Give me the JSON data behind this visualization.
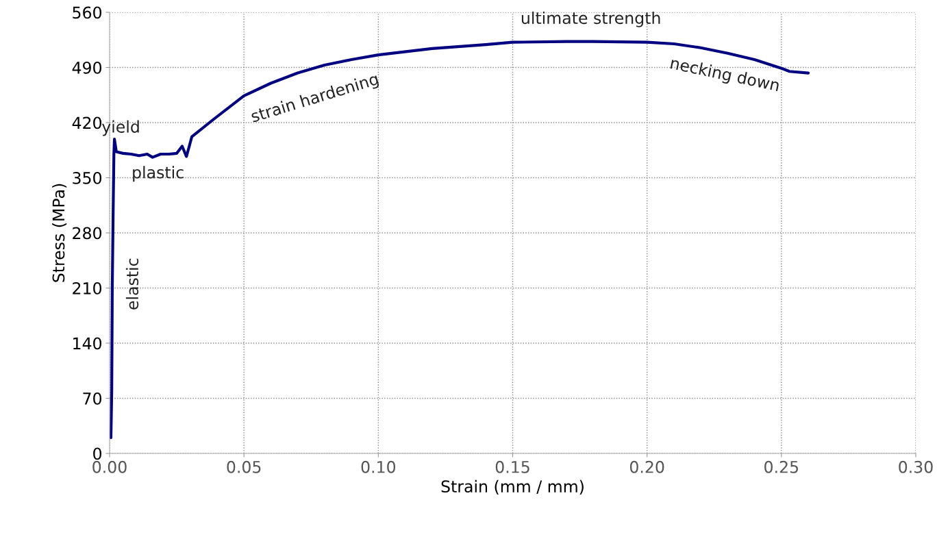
{
  "chart_data": {
    "type": "line",
    "xlabel": "Strain (mm / mm)",
    "ylabel": "Stress (MPa)",
    "xlim": [
      0,
      0.3
    ],
    "ylim": [
      0,
      560
    ],
    "xticks": [
      {
        "value": 0,
        "label": "0.00"
      },
      {
        "value": 0.05,
        "label": "0.05"
      },
      {
        "value": 0.1,
        "label": "0.10"
      },
      {
        "value": 0.15,
        "label": "0.15"
      },
      {
        "value": 0.2,
        "label": "0.20"
      },
      {
        "value": 0.25,
        "label": "0.25"
      },
      {
        "value": 0.3,
        "label": "0.30"
      }
    ],
    "yticks": [
      0,
      70,
      140,
      210,
      280,
      350,
      420,
      490,
      560
    ],
    "grid": true,
    "marker": "none",
    "line_style": "solid",
    "series": [
      {
        "color": "#000080",
        "x": [
          0.0005,
          0.0008,
          0.001,
          0.0013,
          0.0016,
          0.0018,
          0.0025,
          0.005,
          0.008,
          0.011,
          0.014,
          0.016,
          0.019,
          0.022,
          0.025,
          0.027,
          0.0286,
          0.0306,
          0.039,
          0.05,
          0.06,
          0.07,
          0.08,
          0.09,
          0.1,
          0.12,
          0.14,
          0.15,
          0.17,
          0.18,
          0.2,
          0.21,
          0.22,
          0.23,
          0.24,
          0.25,
          0.253,
          0.26
        ],
        "values": [
          20,
          80,
          210,
          300,
          380,
          399,
          383,
          381,
          380,
          378,
          380,
          376,
          380,
          380,
          381,
          390,
          377,
          402,
          425,
          454,
          470,
          483,
          493,
          500,
          506,
          514,
          519,
          522,
          523,
          523,
          522,
          520,
          515,
          508,
          500,
          489,
          485,
          483
        ]
      }
    ],
    "annotations": [
      "yield",
      "plastic",
      "elastic",
      "strain hardening",
      "ultimate strength",
      "necking down"
    ]
  }
}
